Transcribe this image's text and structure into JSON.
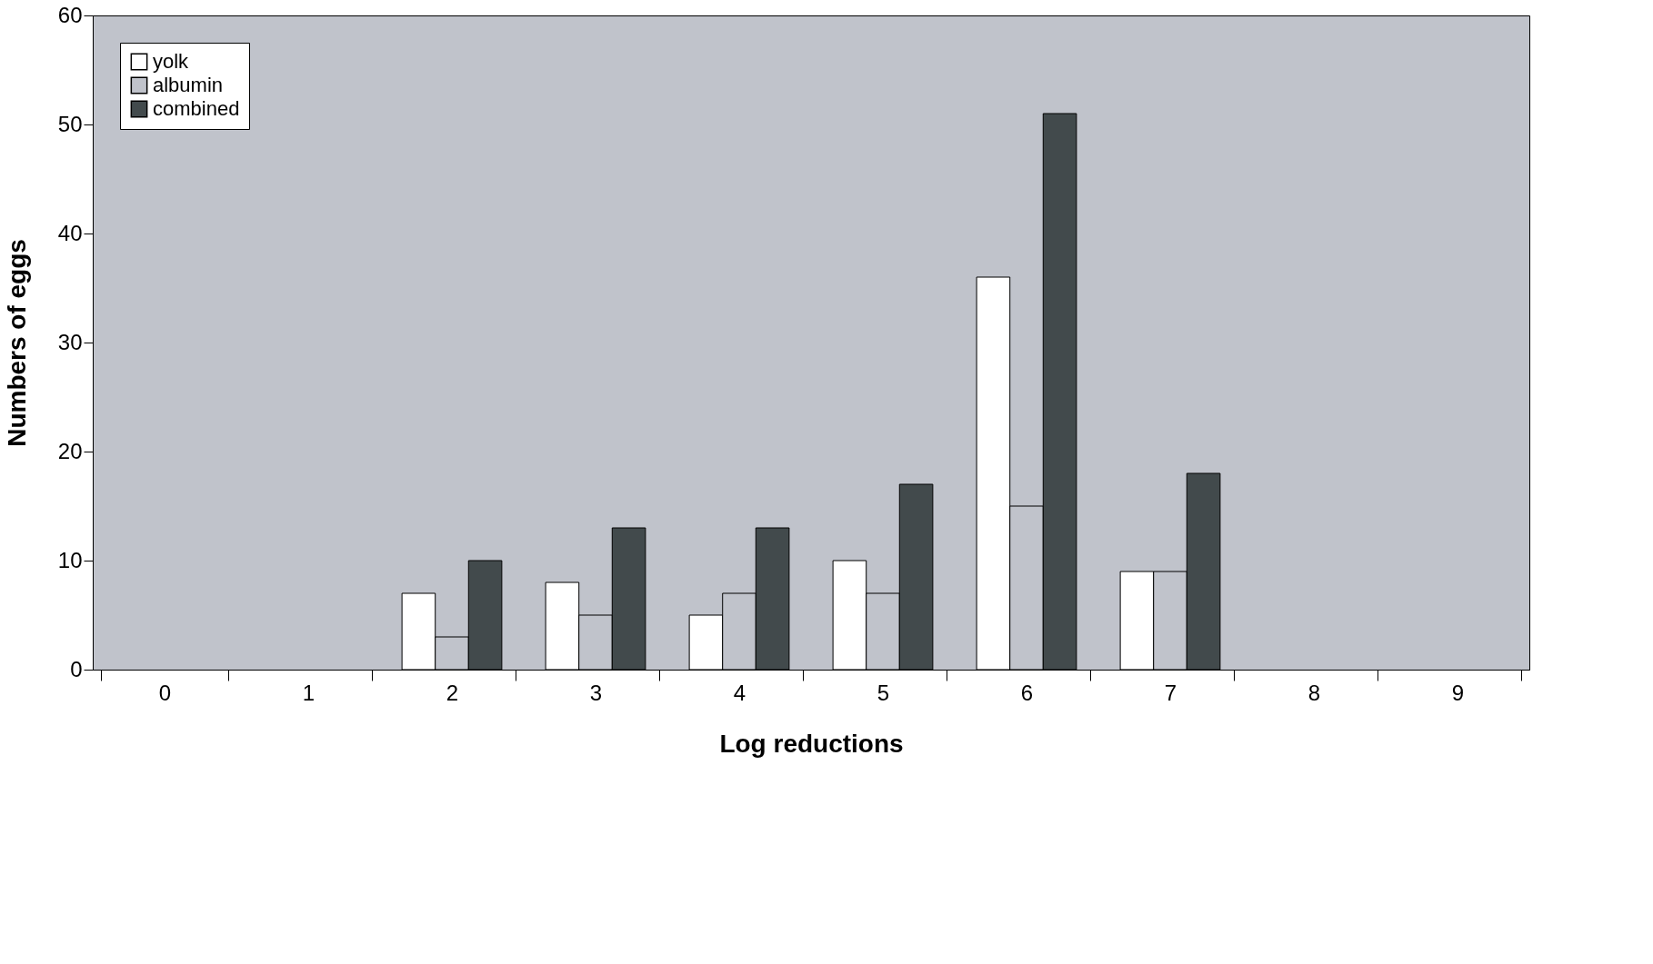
{
  "chart_data": {
    "type": "bar",
    "xlabel": "Log reductions",
    "ylabel": "Numbers of eggs",
    "categories": [
      "0",
      "1",
      "2",
      "3",
      "4",
      "5",
      "6",
      "7",
      "8",
      "9"
    ],
    "series": [
      {
        "name": "yolk",
        "color": "#ffffff",
        "values": [
          0,
          0,
          7,
          8,
          5,
          10,
          36,
          9,
          0,
          0
        ]
      },
      {
        "name": "albumin",
        "color": "#c0c3cb",
        "values": [
          0,
          0,
          3,
          5,
          7,
          7,
          15,
          9,
          0,
          0
        ]
      },
      {
        "name": "combined",
        "color": "#424a4c",
        "values": [
          0,
          0,
          10,
          13,
          13,
          17,
          51,
          18,
          0,
          0
        ]
      }
    ],
    "ylim": [
      0,
      60
    ],
    "yticks": [
      0,
      10,
      20,
      30,
      40,
      50,
      60
    ],
    "grid": false,
    "legend": "top left"
  }
}
